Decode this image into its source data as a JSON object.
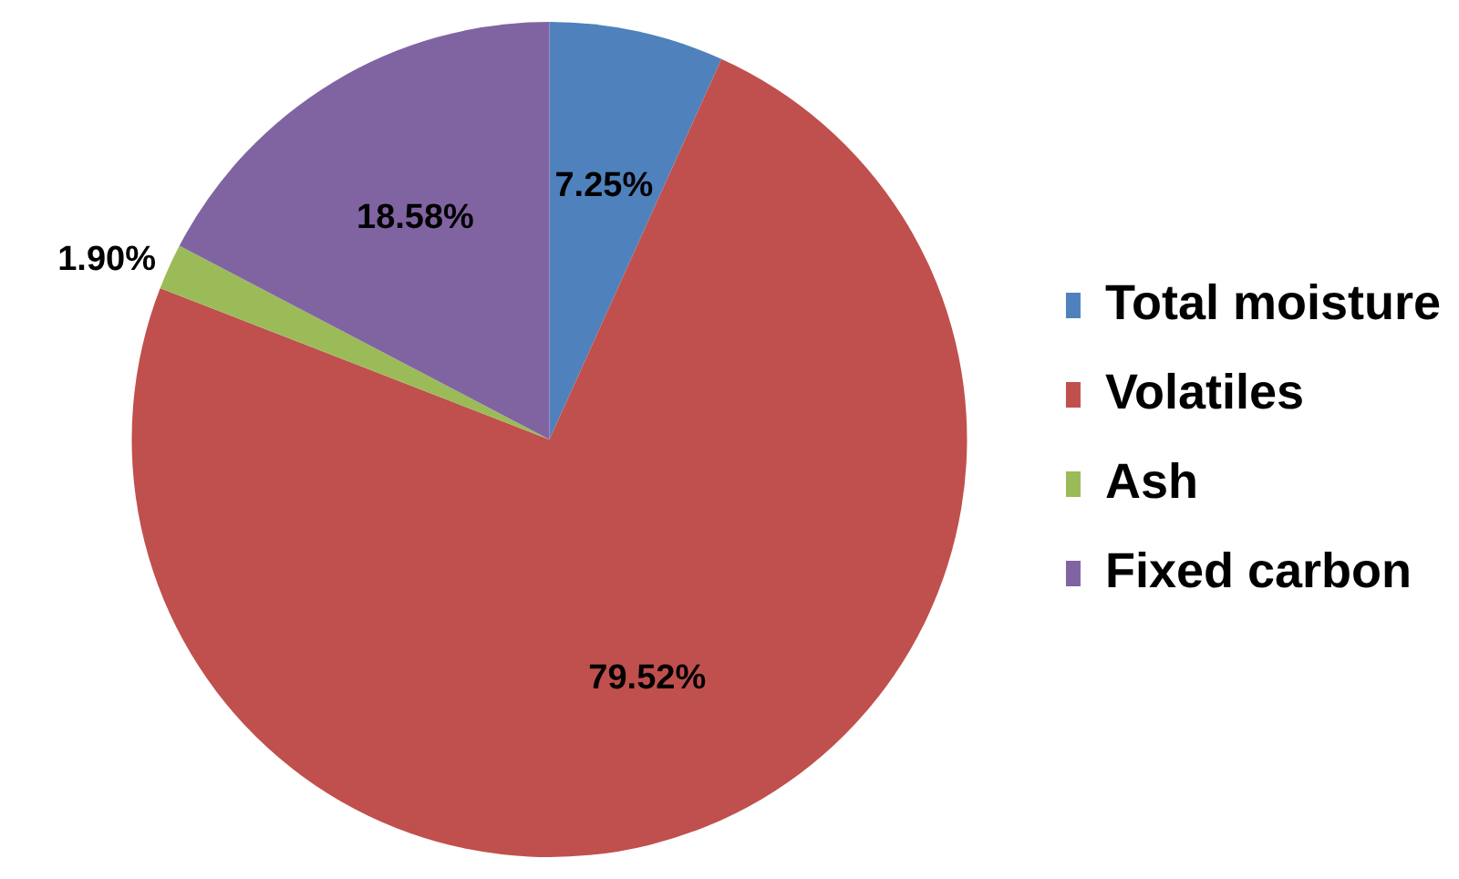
{
  "chart_data": {
    "type": "pie",
    "categories": [
      "Total moisture",
      "Volatiles",
      "Ash",
      "Fixed carbon"
    ],
    "values": [
      7.25,
      79.52,
      1.9,
      18.58
    ],
    "value_labels": [
      "7.25%",
      "79.52%",
      "1.90%",
      "18.58%"
    ],
    "colors": [
      "#4f81bd",
      "#c0504d",
      "#9bbb59",
      "#8064a2"
    ],
    "legend": "right"
  }
}
